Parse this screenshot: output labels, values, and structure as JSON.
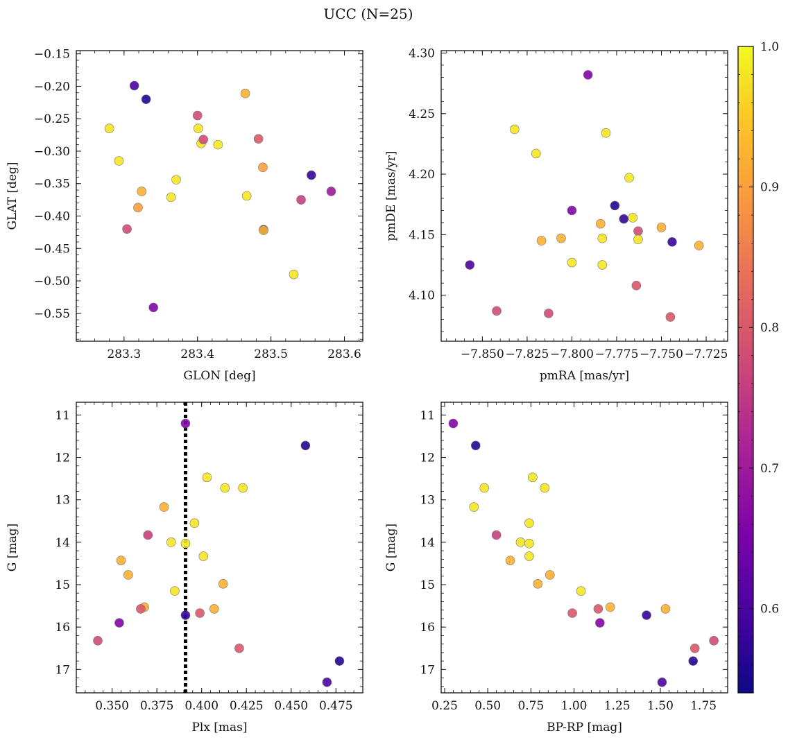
{
  "figure": {
    "title": "UCC (N=25)",
    "colorbar": {
      "min": 0.54,
      "max": 1.0,
      "ticks": [
        0.6,
        0.7,
        0.8,
        0.9,
        1.0
      ],
      "tick_labels": [
        "0.6",
        "0.7",
        "0.8",
        "0.9",
        "1.0"
      ]
    }
  },
  "chart_data": [
    {
      "type": "scatter",
      "title": "",
      "xlabel": "GLON [deg]",
      "ylabel": "GLAT [deg]",
      "xlim": [
        283.235,
        283.625
      ],
      "ylim": [
        -0.593,
        -0.145
      ],
      "y_inverted": false,
      "xticks": [
        283.3,
        283.4,
        283.5,
        283.6
      ],
      "xtick_labels": [
        "283.3",
        "283.4",
        "283.5",
        "283.6"
      ],
      "yticks": [
        -0.55,
        -0.5,
        -0.45,
        -0.4,
        -0.35,
        -0.3,
        -0.25,
        -0.2,
        -0.15
      ],
      "ytick_labels": [
        "−0.55",
        "−0.50",
        "−0.45",
        "−0.40",
        "−0.35",
        "−0.30",
        "−0.25",
        "−0.20",
        "−0.15"
      ],
      "x": [
        283.314,
        283.33,
        283.34,
        283.28,
        283.293,
        283.304,
        283.319,
        283.324,
        283.364,
        283.371,
        283.4,
        283.401,
        283.405,
        283.408,
        283.428,
        283.465,
        283.467,
        283.483,
        283.489,
        283.49,
        283.49,
        283.531,
        283.541,
        283.555,
        283.582
      ],
      "y": [
        -0.199,
        -0.22,
        -0.541,
        -0.265,
        -0.315,
        -0.42,
        -0.387,
        -0.362,
        -0.371,
        -0.344,
        -0.245,
        -0.265,
        -0.288,
        -0.282,
        -0.29,
        -0.211,
        -0.369,
        -0.281,
        -0.325,
        -0.421,
        -0.422,
        -0.49,
        -0.375,
        -0.337,
        -0.362
      ],
      "c": [
        0.6,
        0.56,
        0.66,
        0.98,
        0.98,
        0.78,
        0.9,
        0.92,
        0.98,
        0.98,
        0.78,
        0.98,
        0.98,
        0.78,
        0.98,
        0.92,
        0.98,
        0.8,
        0.9,
        0.56,
        0.92,
        0.98,
        0.76,
        0.58,
        0.7
      ],
      "vline": null
    },
    {
      "type": "scatter",
      "title": "",
      "xlabel": "pmRA [mas/yr]",
      "ylabel": "pmDE [mas/yr]",
      "xlim": [
        -7.873,
        -7.713
      ],
      "ylim": [
        4.062,
        4.302
      ],
      "y_inverted": false,
      "xticks": [
        -7.85,
        -7.825,
        -7.8,
        -7.775,
        -7.75,
        -7.725
      ],
      "xtick_labels": [
        "−7.850",
        "−7.825",
        "−7.800",
        "−7.775",
        "−7.750",
        "−7.725"
      ],
      "yticks": [
        4.1,
        4.15,
        4.2,
        4.25,
        4.3
      ],
      "ytick_labels": [
        "4.10",
        "4.15",
        "4.20",
        "4.25",
        "4.30"
      ],
      "x": [
        -7.791,
        -7.832,
        -7.82,
        -7.781,
        -7.8,
        -7.776,
        -7.771,
        -7.766,
        -7.763,
        -7.784,
        -7.763,
        -7.75,
        -7.744,
        -7.783,
        -7.806,
        -7.8,
        -7.783,
        -7.857,
        -7.817,
        -7.729,
        -7.764,
        -7.842,
        -7.813,
        -7.745,
        -7.768
      ],
      "y": [
        4.282,
        4.237,
        4.217,
        4.234,
        4.17,
        4.174,
        4.163,
        4.164,
        4.153,
        4.159,
        4.146,
        4.156,
        4.144,
        4.147,
        4.147,
        4.127,
        4.125,
        4.125,
        4.145,
        4.141,
        4.108,
        4.087,
        4.085,
        4.082,
        4.197
      ],
      "c": [
        0.66,
        0.98,
        0.98,
        0.98,
        0.66,
        0.56,
        0.58,
        0.98,
        0.78,
        0.92,
        0.98,
        0.92,
        0.58,
        0.98,
        0.92,
        0.98,
        0.98,
        0.6,
        0.92,
        0.92,
        0.8,
        0.78,
        0.78,
        0.8,
        0.98
      ],
      "vline": null
    },
    {
      "type": "scatter",
      "title": "",
      "xlabel": "Plx [mas]",
      "ylabel": "G [mag]",
      "xlim": [
        0.33,
        0.49
      ],
      "ylim": [
        17.55,
        10.7
      ],
      "y_inverted": true,
      "xticks": [
        0.35,
        0.375,
        0.4,
        0.425,
        0.45,
        0.475
      ],
      "xtick_labels": [
        "0.350",
        "0.375",
        "0.400",
        "0.425",
        "0.450",
        "0.475"
      ],
      "yticks": [
        11,
        12,
        13,
        14,
        15,
        16,
        17
      ],
      "ytick_labels": [
        "11",
        "12",
        "13",
        "14",
        "15",
        "16",
        "17"
      ],
      "x": [
        0.391,
        0.458,
        0.403,
        0.413,
        0.423,
        0.379,
        0.396,
        0.37,
        0.383,
        0.391,
        0.401,
        0.355,
        0.359,
        0.412,
        0.385,
        0.368,
        0.366,
        0.407,
        0.399,
        0.391,
        0.354,
        0.342,
        0.421,
        0.477,
        0.47
      ],
      "y": [
        11.2,
        11.72,
        12.47,
        12.72,
        12.72,
        13.17,
        13.55,
        13.83,
        14.0,
        14.03,
        14.33,
        14.43,
        14.77,
        14.98,
        15.15,
        15.53,
        15.57,
        15.57,
        15.67,
        15.72,
        15.9,
        16.32,
        16.5,
        16.8,
        17.3
      ],
      "c": [
        0.66,
        0.56,
        0.98,
        0.98,
        0.98,
        0.92,
        0.98,
        0.76,
        0.98,
        0.98,
        0.98,
        0.92,
        0.92,
        0.92,
        0.98,
        0.92,
        0.8,
        0.92,
        0.8,
        0.58,
        0.66,
        0.78,
        0.8,
        0.56,
        0.6
      ],
      "vline": 0.391
    },
    {
      "type": "scatter",
      "title": "",
      "xlabel": "BP-RP [mag]",
      "ylabel": "G [mag]",
      "xlim": [
        0.23,
        1.89
      ],
      "ylim": [
        17.55,
        10.7
      ],
      "y_inverted": true,
      "xticks": [
        0.25,
        0.5,
        0.75,
        1.0,
        1.25,
        1.5,
        1.75
      ],
      "xtick_labels": [
        "0.25",
        "0.50",
        "0.75",
        "1.00",
        "1.25",
        "1.50",
        "1.75"
      ],
      "yticks": [
        11,
        12,
        13,
        14,
        15,
        16,
        17
      ],
      "ytick_labels": [
        "11",
        "12",
        "13",
        "14",
        "15",
        "16",
        "17"
      ],
      "x": [
        0.3,
        0.43,
        0.48,
        0.42,
        0.76,
        0.83,
        0.74,
        0.55,
        0.69,
        0.74,
        0.74,
        0.63,
        0.86,
        0.79,
        1.04,
        0.99,
        1.14,
        1.21,
        1.15,
        1.42,
        1.53,
        1.51,
        1.69,
        1.7,
        1.81
      ],
      "y": [
        11.2,
        11.72,
        12.72,
        13.17,
        12.47,
        12.72,
        13.55,
        13.83,
        14.0,
        14.03,
        14.33,
        14.43,
        14.77,
        14.98,
        15.15,
        15.67,
        15.57,
        15.53,
        15.9,
        15.72,
        15.57,
        17.3,
        16.8,
        16.5,
        16.32
      ],
      "c": [
        0.66,
        0.56,
        0.98,
        0.98,
        0.98,
        0.98,
        0.98,
        0.76,
        0.98,
        0.98,
        0.98,
        0.92,
        0.92,
        0.92,
        0.98,
        0.8,
        0.8,
        0.92,
        0.66,
        0.58,
        0.92,
        0.6,
        0.56,
        0.8,
        0.78
      ],
      "vline": null
    }
  ]
}
